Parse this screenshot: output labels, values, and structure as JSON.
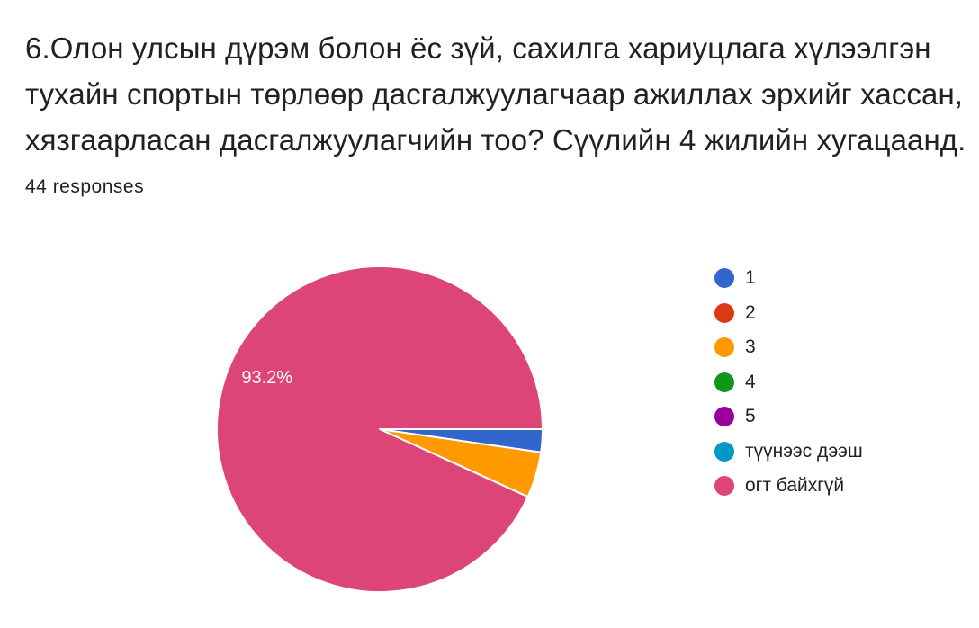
{
  "question": {
    "title": "6.Олон улсын дүрэм болон ёс зүй, сахилга хариуцлага хүлээлгэн тухайн спортын төрлөөр дасгалжуулагчаар ажиллах эрхийг хассан, хязгаарласан дасгалжуулагчийн тоо? Сүүлийн 4 жилийн хугацаанд.",
    "response_count": "44 responses"
  },
  "chart_data": {
    "type": "pie",
    "title": "",
    "total_responses": 44,
    "slices": [
      {
        "label": "1",
        "value": 1,
        "percent": 2.3,
        "color": "#3366cc"
      },
      {
        "label": "2",
        "value": 0,
        "percent": 0,
        "color": "#dc3912"
      },
      {
        "label": "3",
        "value": 2,
        "percent": 4.5,
        "color": "#ff9900"
      },
      {
        "label": "4",
        "value": 0,
        "percent": 0,
        "color": "#109618"
      },
      {
        "label": "5",
        "value": 0,
        "percent": 0,
        "color": "#990099"
      },
      {
        "label": "түүнээс дээш",
        "value": 0,
        "percent": 0,
        "color": "#0099c6"
      },
      {
        "label": "огт байхгүй",
        "value": 41,
        "percent": 93.2,
        "color": "#dd4477"
      }
    ],
    "data_labels": [
      {
        "slice": "огт байхгүй",
        "text": "93.2%"
      }
    ],
    "legend_position": "right"
  }
}
